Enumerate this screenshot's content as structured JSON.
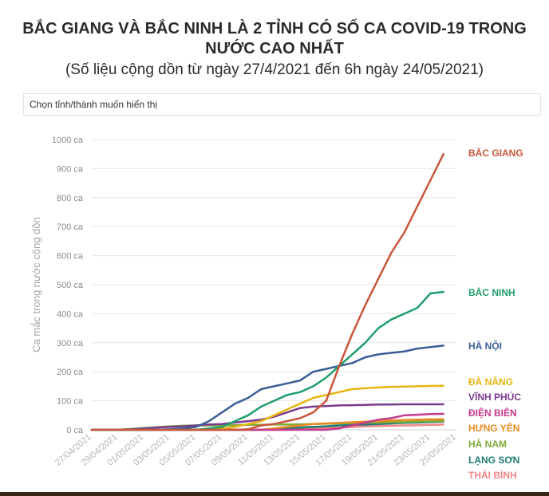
{
  "title_line1": "BẮC GIANG VÀ BẮC NINH LÀ 2 TỈNH CÓ SỐ CA COVID-19 TRONG",
  "title_line2": "NƯỚC CAO NHẤT",
  "subtitle": "(Số liệu cộng dồn từ ngày 27/4/2021 đến 6h ngày 24/05/2021)",
  "selector_label": "Chọn tỉnh/thành muốn hiển thị",
  "chart_data": {
    "type": "line",
    "ylabel": "Ca mắc trong nước cộng dồn",
    "ylim": [
      0,
      1000
    ],
    "yticks": [
      0,
      100,
      200,
      300,
      400,
      500,
      600,
      700,
      800,
      900,
      1000
    ],
    "ytick_labels": [
      "0 ca",
      "100 ca",
      "200 ca",
      "300 ca",
      "400 ca",
      "500 ca",
      "600 ca",
      "700 ca",
      "800 ca",
      "900 ca",
      "1000 ca"
    ],
    "x_dates": [
      "27/04/2021",
      "28/04/2021",
      "29/04/2021",
      "30/04/2021",
      "01/05/2021",
      "02/05/2021",
      "03/05/2021",
      "04/05/2021",
      "05/05/2021",
      "06/05/2021",
      "07/05/2021",
      "08/05/2021",
      "09/05/2021",
      "10/05/2021",
      "11/05/2021",
      "12/05/2021",
      "13/05/2021",
      "14/05/2021",
      "15/05/2021",
      "16/05/2021",
      "17/05/2021",
      "18/05/2021",
      "19/05/2021",
      "20/05/2021",
      "21/05/2021",
      "22/05/2021",
      "23/05/2021",
      "24/05/2021"
    ],
    "xtick_labels": [
      "27/04/2021",
      "29/04/2021",
      "01/05/2021",
      "03/05/2021",
      "05/05/2021",
      "07/05/2021",
      "09/05/2021",
      "11/05/2021",
      "13/05/2021",
      "15/05/2021",
      "17/05/2021",
      "19/05/2021",
      "21/05/2021",
      "23/05/2021",
      "25/05/2021"
    ],
    "grid": "horizontal",
    "legend": "right-end labels",
    "series": [
      {
        "name": "BẮC GIANG",
        "color": "#c9553a",
        "values": [
          0,
          0,
          0,
          0,
          0,
          0,
          0,
          0,
          0,
          0,
          0,
          0,
          2,
          15,
          20,
          30,
          40,
          60,
          100,
          220,
          330,
          430,
          520,
          610,
          680,
          770,
          860,
          950
        ]
      },
      {
        "name": "BẮC NINH",
        "color": "#1f9e6a",
        "values": [
          0,
          0,
          0,
          0,
          0,
          0,
          0,
          0,
          0,
          5,
          10,
          30,
          50,
          80,
          100,
          120,
          130,
          150,
          180,
          220,
          260,
          300,
          350,
          380,
          400,
          420,
          470,
          475
        ]
      },
      {
        "name": "HÀ NỘI",
        "color": "#3a5e96",
        "values": [
          0,
          0,
          0,
          0,
          0,
          0,
          2,
          5,
          10,
          30,
          60,
          90,
          110,
          140,
          150,
          160,
          170,
          200,
          210,
          220,
          230,
          250,
          260,
          265,
          270,
          280,
          285,
          290
        ]
      },
      {
        "name": "ĐÀ NẴNG",
        "color": "#e8b410",
        "values": [
          0,
          0,
          0,
          0,
          0,
          0,
          0,
          0,
          0,
          2,
          5,
          10,
          20,
          30,
          50,
          70,
          90,
          110,
          120,
          130,
          140,
          143,
          146,
          148,
          149,
          150,
          151,
          152
        ]
      },
      {
        "name": "VĨNH PHÚC",
        "color": "#7a3b8f",
        "values": [
          0,
          0,
          0,
          2,
          5,
          8,
          10,
          12,
          15,
          18,
          20,
          25,
          30,
          35,
          45,
          60,
          75,
          80,
          82,
          84,
          85,
          86,
          87,
          87,
          88,
          88,
          88,
          88
        ]
      },
      {
        "name": "ĐIỆN BIÊN",
        "color": "#c43a8c",
        "values": [
          0,
          0,
          0,
          0,
          0,
          0,
          0,
          0,
          0,
          0,
          0,
          0,
          0,
          0,
          0,
          0,
          0,
          0,
          0,
          5,
          15,
          25,
          35,
          40,
          50,
          52,
          54,
          55
        ]
      },
      {
        "name": "HƯNG YÊN",
        "color": "#e88a20",
        "values": [
          0,
          0,
          0,
          0,
          0,
          0,
          0,
          0,
          0,
          0,
          0,
          0,
          0,
          0,
          5,
          10,
          15,
          20,
          22,
          24,
          26,
          28,
          30,
          32,
          34,
          35,
          36,
          36
        ]
      },
      {
        "name": "HÀ NAM",
        "color": "#7eaa3a",
        "values": [
          0,
          0,
          0,
          3,
          6,
          9,
          12,
          14,
          15,
          15,
          16,
          16,
          17,
          17,
          18,
          18,
          19,
          20,
          21,
          22,
          23,
          24,
          25,
          26,
          27,
          28,
          29,
          30
        ]
      },
      {
        "name": "LẠNG SƠN",
        "color": "#1e7a78",
        "values": [
          0,
          0,
          0,
          0,
          0,
          0,
          0,
          0,
          0,
          0,
          0,
          0,
          0,
          0,
          2,
          5,
          8,
          10,
          12,
          15,
          17,
          18,
          20,
          22,
          24,
          25,
          27,
          28
        ]
      },
      {
        "name": "THÁI BÌNH",
        "color": "#f08585",
        "values": [
          0,
          0,
          0,
          0,
          0,
          0,
          0,
          0,
          0,
          0,
          0,
          0,
          0,
          0,
          0,
          0,
          2,
          4,
          6,
          8,
          10,
          12,
          13,
          14,
          15,
          16,
          17,
          18
        ]
      }
    ]
  }
}
